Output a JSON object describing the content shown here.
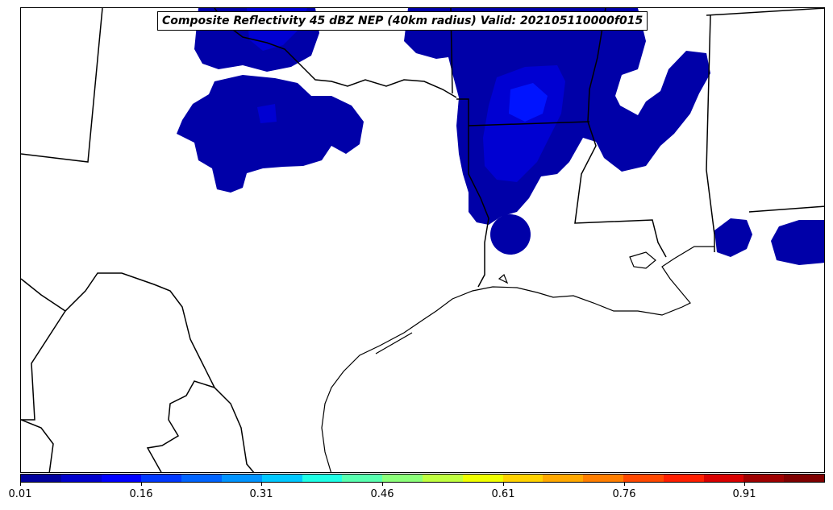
{
  "title": "Composite Reflectivity 45 dBZ NEP (40km radius) Valid: 202105110000f015",
  "colorbar": {
    "colors": [
      "#00009e",
      "#0000cd",
      "#0000ff",
      "#0038ff",
      "#0064ff",
      "#0094ff",
      "#00c8ff",
      "#1effe6",
      "#58ffb0",
      "#8cff7a",
      "#c0ff40",
      "#f0ff00",
      "#ffd200",
      "#ffa800",
      "#ff7e00",
      "#ff4800",
      "#ff1e00",
      "#d90000",
      "#9f0000",
      "#7f0000"
    ],
    "ticks": [
      "0.01",
      "0.16",
      "0.31",
      "0.46",
      "0.61",
      "0.76",
      "0.91"
    ]
  },
  "fields": {
    "fill_dark": "#0000a8",
    "fill_mid": "#0000d2",
    "fill_bright": "#0014ff",
    "boundary": "#000000"
  }
}
